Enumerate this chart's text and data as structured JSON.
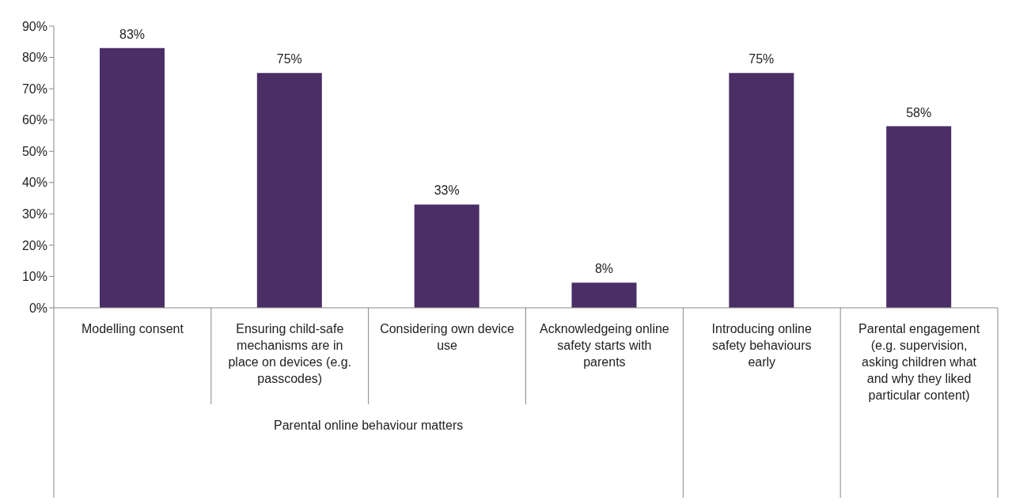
{
  "chart_data": {
    "type": "bar",
    "categories": [
      "Modelling consent",
      "Ensuring child-safe mechanisms are in place on devices (e.g. passcodes)",
      "Considering own device use",
      "Acknowledgeing online safety starts with parents",
      "Introducing online safety behaviours early",
      "Parental engagement (e.g. supervision, asking children what and why they liked particular content)"
    ],
    "values": [
      83,
      75,
      33,
      8,
      75,
      58
    ],
    "value_labels": [
      "83%",
      "75%",
      "33%",
      "8%",
      "75%",
      "58%"
    ],
    "color": "#4b2e66",
    "ylim": [
      0,
      90
    ],
    "yticks": [
      {
        "value": 0,
        "label": "0%"
      },
      {
        "value": 10,
        "label": "10%"
      },
      {
        "value": 20,
        "label": "20%"
      },
      {
        "value": 30,
        "label": "30%"
      },
      {
        "value": 40,
        "label": "40%"
      },
      {
        "value": 50,
        "label": "50%"
      },
      {
        "value": 60,
        "label": "60%"
      },
      {
        "value": 70,
        "label": "70%"
      },
      {
        "value": 80,
        "label": "80%"
      },
      {
        "value": 90,
        "label": "90%"
      }
    ],
    "grid": false,
    "legend": false,
    "annotations": [
      "Parental online behaviour matters"
    ]
  }
}
